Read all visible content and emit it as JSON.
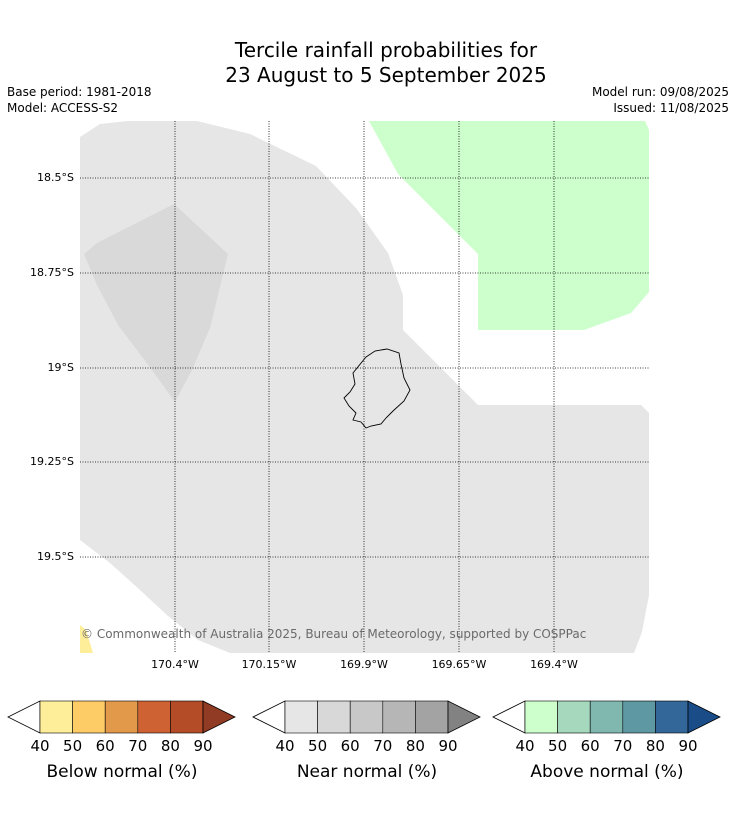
{
  "title": {
    "line1": "Tercile rainfall probabilities for",
    "line2": "23 August to 5 September 2025"
  },
  "meta": {
    "base_period": "Base period: 1981-2018",
    "model": "Model: ACCESS-S2",
    "model_run": "Model run: 09/08/2025",
    "issued": "Issued: 11/08/2025"
  },
  "map": {
    "latitude_labels": [
      "18.5°S",
      "18.75°S",
      "19°S",
      "19.25°S",
      "19.5°S"
    ],
    "longitude_labels": [
      "170.4°W",
      "170.15°W",
      "169.9°W",
      "169.65°W",
      "169.4°W"
    ],
    "copyright": "© Commonwealth of Australia 2025, Bureau of Meteorology, supported by COSPPac",
    "region_colors": {
      "near_normal_40_50": "#e6e6e6",
      "near_normal_50_60": "#d9d9d9",
      "above_normal_40_50": "#ccffcc",
      "below_normal_40_50": "#ffee99"
    }
  },
  "legends": [
    {
      "title": "Below normal (%)",
      "ticks": [
        "40",
        "50",
        "60",
        "70",
        "80",
        "90"
      ],
      "colors": [
        "#ffee99",
        "#fecc66",
        "#e29a4a",
        "#cf6233",
        "#b44c28",
        "#913a24"
      ]
    },
    {
      "title": "Near normal (%)",
      "ticks": [
        "40",
        "50",
        "60",
        "70",
        "80",
        "90"
      ],
      "colors": [
        "#e6e6e6",
        "#d8d8d8",
        "#c8c8c8",
        "#b6b6b6",
        "#a3a3a3",
        "#828282"
      ]
    },
    {
      "title": "Above normal (%)",
      "ticks": [
        "40",
        "50",
        "60",
        "70",
        "80",
        "90"
      ],
      "colors": [
        "#ccffcc",
        "#a5d8bd",
        "#80b8b0",
        "#5e98a3",
        "#336699",
        "#1a4d88"
      ]
    }
  ]
}
